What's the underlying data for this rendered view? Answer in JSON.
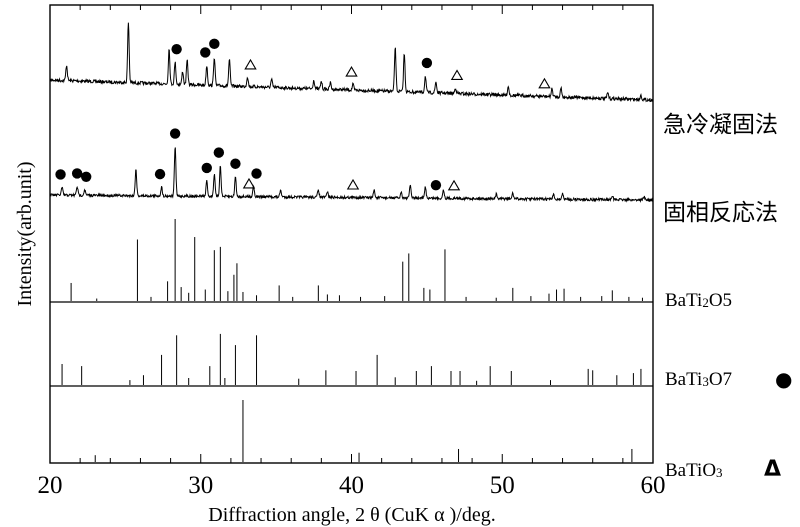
{
  "chart_data": {
    "type": "line",
    "title": "",
    "xlabel": "Diffraction angle, 2 θ (CuK α )/deg.",
    "ylabel": "Intensity(arb.unit)",
    "xlim": [
      20,
      60
    ],
    "x_ticks": [
      "20",
      "30",
      "40",
      "50",
      "60"
    ],
    "grid": false,
    "legend": "none",
    "colors": {
      "line": "#000000",
      "background": "#ffffff"
    },
    "series": [
      {
        "name": "急冷凝固法",
        "peaks": [
          {
            "x": 21.1,
            "h": 0.14
          },
          {
            "x": 25.2,
            "h": 0.55
          },
          {
            "x": 27.9,
            "h": 0.32
          },
          {
            "x": 28.3,
            "h": 0.2
          },
          {
            "x": 28.8,
            "h": 0.12
          },
          {
            "x": 29.1,
            "h": 0.22
          },
          {
            "x": 30.4,
            "h": 0.18
          },
          {
            "x": 30.9,
            "h": 0.26
          },
          {
            "x": 31.9,
            "h": 0.24
          },
          {
            "x": 33.1,
            "h": 0.09
          },
          {
            "x": 34.7,
            "h": 0.07
          },
          {
            "x": 37.5,
            "h": 0.08
          },
          {
            "x": 38.0,
            "h": 0.07
          },
          {
            "x": 38.6,
            "h": 0.06
          },
          {
            "x": 40.1,
            "h": 0.05
          },
          {
            "x": 42.9,
            "h": 0.4
          },
          {
            "x": 43.5,
            "h": 0.35
          },
          {
            "x": 44.9,
            "h": 0.15
          },
          {
            "x": 45.6,
            "h": 0.1
          },
          {
            "x": 46.9,
            "h": 0.05
          },
          {
            "x": 50.4,
            "h": 0.08
          },
          {
            "x": 53.3,
            "h": 0.07
          },
          {
            "x": 53.9,
            "h": 0.08
          },
          {
            "x": 57.0,
            "h": 0.05
          },
          {
            "x": 59.2,
            "h": 0.04
          }
        ],
        "markers": [
          {
            "shape": "circle",
            "x": 28.4
          },
          {
            "shape": "circle",
            "x": 30.3
          },
          {
            "shape": "circle",
            "x": 30.9
          },
          {
            "shape": "triangle",
            "x": 33.3
          },
          {
            "shape": "triangle",
            "x": 40.0
          },
          {
            "shape": "circle",
            "x": 45.0
          },
          {
            "shape": "triangle",
            "x": 47.0
          },
          {
            "shape": "triangle",
            "x": 52.8
          }
        ]
      },
      {
        "name": "固相反応法",
        "peaks": [
          {
            "x": 20.8,
            "h": 0.07
          },
          {
            "x": 21.8,
            "h": 0.08
          },
          {
            "x": 22.3,
            "h": 0.05
          },
          {
            "x": 25.7,
            "h": 0.24
          },
          {
            "x": 27.4,
            "h": 0.08
          },
          {
            "x": 28.3,
            "h": 0.45
          },
          {
            "x": 30.4,
            "h": 0.14
          },
          {
            "x": 30.9,
            "h": 0.2
          },
          {
            "x": 31.3,
            "h": 0.28
          },
          {
            "x": 32.3,
            "h": 0.18
          },
          {
            "x": 33.5,
            "h": 0.1
          },
          {
            "x": 35.3,
            "h": 0.06
          },
          {
            "x": 37.8,
            "h": 0.07
          },
          {
            "x": 38.4,
            "h": 0.05
          },
          {
            "x": 41.5,
            "h": 0.07
          },
          {
            "x": 43.3,
            "h": 0.05
          },
          {
            "x": 43.9,
            "h": 0.12
          },
          {
            "x": 44.9,
            "h": 0.1
          },
          {
            "x": 46.1,
            "h": 0.08
          },
          {
            "x": 49.6,
            "h": 0.04
          },
          {
            "x": 50.7,
            "h": 0.05
          },
          {
            "x": 53.4,
            "h": 0.04
          },
          {
            "x": 54.0,
            "h": 0.05
          },
          {
            "x": 57.3,
            "h": 0.04
          },
          {
            "x": 59.4,
            "h": 0.03
          }
        ],
        "markers": [
          {
            "shape": "circle",
            "x": 20.7
          },
          {
            "shape": "circle",
            "x": 21.8
          },
          {
            "shape": "circle",
            "x": 22.4
          },
          {
            "shape": "circle",
            "x": 27.3
          },
          {
            "shape": "circle",
            "x": 28.3
          },
          {
            "shape": "circle",
            "x": 30.4
          },
          {
            "shape": "circle",
            "x": 31.2
          },
          {
            "shape": "circle",
            "x": 32.3
          },
          {
            "shape": "triangle",
            "x": 33.2
          },
          {
            "shape": "circle",
            "x": 33.7
          },
          {
            "shape": "triangle",
            "x": 40.1
          },
          {
            "shape": "circle",
            "x": 45.6
          },
          {
            "shape": "triangle",
            "x": 46.8
          }
        ]
      }
    ],
    "references": [
      {
        "name": "BaTi2O5",
        "sub_digit": "2",
        "symbol": "",
        "sticks": [
          {
            "x": 21.4,
            "h": 0.22
          },
          {
            "x": 23.1,
            "h": 0.03
          },
          {
            "x": 25.8,
            "h": 0.75
          },
          {
            "x": 26.7,
            "h": 0.05
          },
          {
            "x": 27.8,
            "h": 0.24
          },
          {
            "x": 28.3,
            "h": 1.0
          },
          {
            "x": 28.7,
            "h": 0.17
          },
          {
            "x": 29.2,
            "h": 0.1
          },
          {
            "x": 29.6,
            "h": 0.78
          },
          {
            "x": 30.3,
            "h": 0.14
          },
          {
            "x": 30.9,
            "h": 0.62
          },
          {
            "x": 31.3,
            "h": 0.66
          },
          {
            "x": 31.8,
            "h": 0.12
          },
          {
            "x": 32.2,
            "h": 0.32
          },
          {
            "x": 32.4,
            "h": 0.46
          },
          {
            "x": 32.8,
            "h": 0.11
          },
          {
            "x": 33.7,
            "h": 0.07
          },
          {
            "x": 35.2,
            "h": 0.19
          },
          {
            "x": 36.1,
            "h": 0.05
          },
          {
            "x": 37.8,
            "h": 0.19
          },
          {
            "x": 38.4,
            "h": 0.08
          },
          {
            "x": 39.2,
            "h": 0.07
          },
          {
            "x": 40.6,
            "h": 0.05
          },
          {
            "x": 42.2,
            "h": 0.06
          },
          {
            "x": 43.4,
            "h": 0.48
          },
          {
            "x": 43.8,
            "h": 0.58
          },
          {
            "x": 44.8,
            "h": 0.16
          },
          {
            "x": 45.2,
            "h": 0.14
          },
          {
            "x": 46.2,
            "h": 0.63
          },
          {
            "x": 47.6,
            "h": 0.05
          },
          {
            "x": 49.6,
            "h": 0.04
          },
          {
            "x": 50.7,
            "h": 0.16
          },
          {
            "x": 51.9,
            "h": 0.06
          },
          {
            "x": 53.1,
            "h": 0.09
          },
          {
            "x": 53.6,
            "h": 0.14
          },
          {
            "x": 54.1,
            "h": 0.15
          },
          {
            "x": 55.2,
            "h": 0.05
          },
          {
            "x": 56.6,
            "h": 0.06
          },
          {
            "x": 57.3,
            "h": 0.13
          },
          {
            "x": 58.4,
            "h": 0.05
          },
          {
            "x": 59.3,
            "h": 0.04
          }
        ]
      },
      {
        "name": "BaTi3O7",
        "sub_digit": "3",
        "symbol": "●",
        "sticks": [
          {
            "x": 20.8,
            "h": 0.3
          },
          {
            "x": 22.1,
            "h": 0.27
          },
          {
            "x": 25.3,
            "h": 0.07
          },
          {
            "x": 26.2,
            "h": 0.14
          },
          {
            "x": 27.4,
            "h": 0.43
          },
          {
            "x": 28.4,
            "h": 0.71
          },
          {
            "x": 29.2,
            "h": 0.1
          },
          {
            "x": 30.6,
            "h": 0.27
          },
          {
            "x": 31.3,
            "h": 0.73
          },
          {
            "x": 31.6,
            "h": 0.1
          },
          {
            "x": 32.3,
            "h": 0.57
          },
          {
            "x": 33.7,
            "h": 0.71
          },
          {
            "x": 36.5,
            "h": 0.09
          },
          {
            "x": 38.3,
            "h": 0.21
          },
          {
            "x": 40.3,
            "h": 0.2
          },
          {
            "x": 41.7,
            "h": 0.43
          },
          {
            "x": 42.9,
            "h": 0.11
          },
          {
            "x": 44.3,
            "h": 0.2
          },
          {
            "x": 45.3,
            "h": 0.27
          },
          {
            "x": 46.6,
            "h": 0.2
          },
          {
            "x": 47.2,
            "h": 0.2
          },
          {
            "x": 48.3,
            "h": 0.06
          },
          {
            "x": 49.2,
            "h": 0.27
          },
          {
            "x": 50.6,
            "h": 0.2
          },
          {
            "x": 53.2,
            "h": 0.07
          },
          {
            "x": 55.7,
            "h": 0.23
          },
          {
            "x": 56.0,
            "h": 0.21
          },
          {
            "x": 57.6,
            "h": 0.14
          },
          {
            "x": 58.7,
            "h": 0.17
          },
          {
            "x": 59.2,
            "h": 0.23
          }
        ]
      },
      {
        "name": "BaTiO3",
        "sub_digit": "3",
        "symbol": "Δ",
        "sticks": [
          {
            "x": 23.0,
            "h": 0.11
          },
          {
            "x": 32.8,
            "h": 1.0
          },
          {
            "x": 40.5,
            "h": 0.15
          },
          {
            "x": 47.1,
            "h": 0.21
          },
          {
            "x": 58.6,
            "h": 0.21
          }
        ]
      }
    ]
  }
}
